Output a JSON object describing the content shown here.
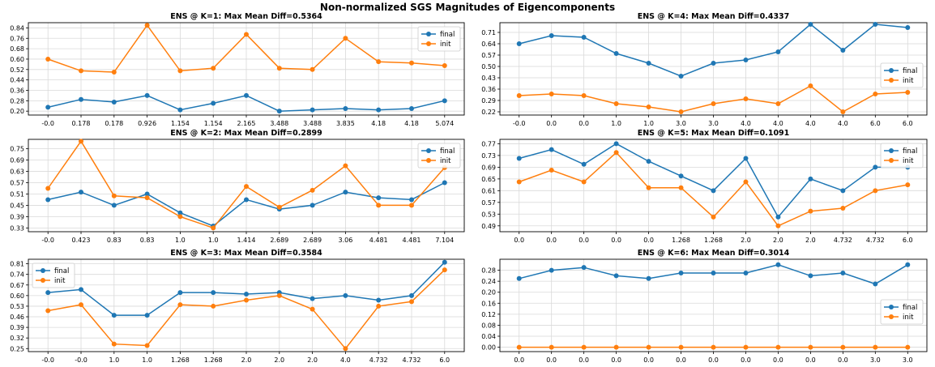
{
  "suptitle": "Non-normalized SGS Magnitudes of Eigencomponents",
  "colors": {
    "final": "#1f77b4",
    "init": "#ff7f0e",
    "grid": "#d9d9d9"
  },
  "chart_data": [
    {
      "type": "line",
      "title": "ENS @ K=1: Max Mean Diff=0.5364",
      "categories": [
        "-0.0",
        "0.178",
        "0.178",
        "0.926",
        "1.154",
        "1.154",
        "2.165",
        "3.488",
        "3.488",
        "3.835",
        "4.18",
        "4.18",
        "5.074"
      ],
      "yticks": [
        "0.20",
        "0.28",
        "0.36",
        "0.44",
        "0.52",
        "0.60",
        "0.68",
        "0.76",
        "0.84"
      ],
      "ylim": [
        0.17,
        0.88
      ],
      "legend": "top-right",
      "series": [
        {
          "name": "final",
          "values": [
            0.23,
            0.29,
            0.27,
            0.32,
            0.21,
            0.26,
            0.32,
            0.2,
            0.21,
            0.22,
            0.21,
            0.22,
            0.28
          ]
        },
        {
          "name": "init",
          "values": [
            0.6,
            0.51,
            0.5,
            0.86,
            0.51,
            0.53,
            0.79,
            0.53,
            0.52,
            0.76,
            0.58,
            0.57,
            0.55
          ]
        }
      ]
    },
    {
      "type": "line",
      "title": "ENS @ K=4: Max Mean Diff=0.4337",
      "categories": [
        "-0.0",
        "0.0",
        "0.0",
        "1.0",
        "1.0",
        "3.0",
        "3.0",
        "4.0",
        "4.0",
        "4.0",
        "4.0",
        "6.0",
        "6.0"
      ],
      "yticks": [
        "0.22",
        "0.29",
        "0.36",
        "0.43",
        "0.50",
        "0.57",
        "0.64",
        "0.71"
      ],
      "ylim": [
        0.2,
        0.77
      ],
      "legend": "center-right",
      "series": [
        {
          "name": "final",
          "values": [
            0.64,
            0.69,
            0.68,
            0.58,
            0.52,
            0.44,
            0.52,
            0.54,
            0.59,
            0.76,
            0.6,
            0.76,
            0.74
          ]
        },
        {
          "name": "init",
          "values": [
            0.32,
            0.33,
            0.32,
            0.27,
            0.25,
            0.22,
            0.27,
            0.3,
            0.27,
            0.38,
            0.22,
            0.33,
            0.34
          ]
        }
      ]
    },
    {
      "type": "line",
      "title": "ENS @ K=2: Max Mean Diff=0.2899",
      "categories": [
        "-0.0",
        "0.423",
        "0.83",
        "0.83",
        "1.0",
        "1.0",
        "1.414",
        "2.689",
        "2.689",
        "3.06",
        "4.481",
        "4.481",
        "7.104"
      ],
      "yticks": [
        "0.33",
        "0.39",
        "0.45",
        "0.51",
        "0.57",
        "0.63",
        "0.69",
        "0.75"
      ],
      "ylim": [
        0.31,
        0.8
      ],
      "legend": "top-right",
      "series": [
        {
          "name": "final",
          "values": [
            0.48,
            0.52,
            0.45,
            0.51,
            0.41,
            0.34,
            0.48,
            0.43,
            0.45,
            0.52,
            0.49,
            0.48,
            0.57
          ]
        },
        {
          "name": "init",
          "values": [
            0.54,
            0.79,
            0.5,
            0.49,
            0.39,
            0.33,
            0.55,
            0.44,
            0.53,
            0.66,
            0.45,
            0.45,
            0.65
          ]
        }
      ]
    },
    {
      "type": "line",
      "title": "ENS @ K=5: Max Mean Diff=0.1091",
      "categories": [
        "0.0",
        "0.0",
        "0.0",
        "0.0",
        "0.0",
        "1.268",
        "1.268",
        "2.0",
        "2.0",
        "2.0",
        "4.732",
        "4.732",
        "6.0"
      ],
      "yticks": [
        "0.49",
        "0.53",
        "0.57",
        "0.61",
        "0.65",
        "0.69",
        "0.73",
        "0.77"
      ],
      "ylim": [
        0.47,
        0.785
      ],
      "legend": "top-right",
      "series": [
        {
          "name": "final",
          "values": [
            0.72,
            0.75,
            0.7,
            0.77,
            0.71,
            0.66,
            0.61,
            0.72,
            0.52,
            0.65,
            0.61,
            0.69,
            0.69
          ]
        },
        {
          "name": "init",
          "values": [
            0.64,
            0.68,
            0.64,
            0.74,
            0.62,
            0.62,
            0.52,
            0.64,
            0.49,
            0.54,
            0.55,
            0.61,
            0.63
          ]
        }
      ]
    },
    {
      "type": "line",
      "title": "ENS @ K=3: Max Mean Diff=0.3584",
      "categories": [
        "-0.0",
        "-0.0",
        "1.0",
        "1.0",
        "1.268",
        "1.268",
        "2.0",
        "2.0",
        "2.0",
        "4.0",
        "4.732",
        "4.732",
        "6.0"
      ],
      "yticks": [
        "0.25",
        "0.32",
        "0.39",
        "0.46",
        "0.53",
        "0.60",
        "0.67",
        "0.74",
        "0.81"
      ],
      "ylim": [
        0.23,
        0.84
      ],
      "legend": "top-left",
      "series": [
        {
          "name": "final",
          "values": [
            0.62,
            0.64,
            0.47,
            0.47,
            0.62,
            0.62,
            0.61,
            0.62,
            0.58,
            0.6,
            0.57,
            0.6,
            0.82
          ]
        },
        {
          "name": "init",
          "values": [
            0.5,
            0.54,
            0.28,
            0.27,
            0.54,
            0.53,
            0.57,
            0.6,
            0.51,
            0.25,
            0.53,
            0.56,
            0.77
          ]
        }
      ]
    },
    {
      "type": "line",
      "title": "ENS @ K=6: Max Mean Diff=0.3014",
      "categories": [
        "0.0",
        "0.0",
        "0.0",
        "0.0",
        "0.0",
        "0.0",
        "0.0",
        "0.0",
        "0.0",
        "0.0",
        "0.0",
        "3.0",
        "3.0"
      ],
      "yticks": [
        "0.00",
        "0.04",
        "0.08",
        "0.12",
        "0.16",
        "0.20",
        "0.24",
        "0.28"
      ],
      "ylim": [
        -0.016,
        0.32
      ],
      "legend": "center-right",
      "series": [
        {
          "name": "final",
          "values": [
            0.25,
            0.28,
            0.29,
            0.26,
            0.25,
            0.27,
            0.27,
            0.27,
            0.3,
            0.26,
            0.27,
            0.23,
            0.3
          ]
        },
        {
          "name": "init",
          "values": [
            0,
            0,
            0,
            0,
            0,
            0,
            0,
            0,
            0,
            0,
            0,
            0,
            0
          ]
        }
      ]
    }
  ]
}
